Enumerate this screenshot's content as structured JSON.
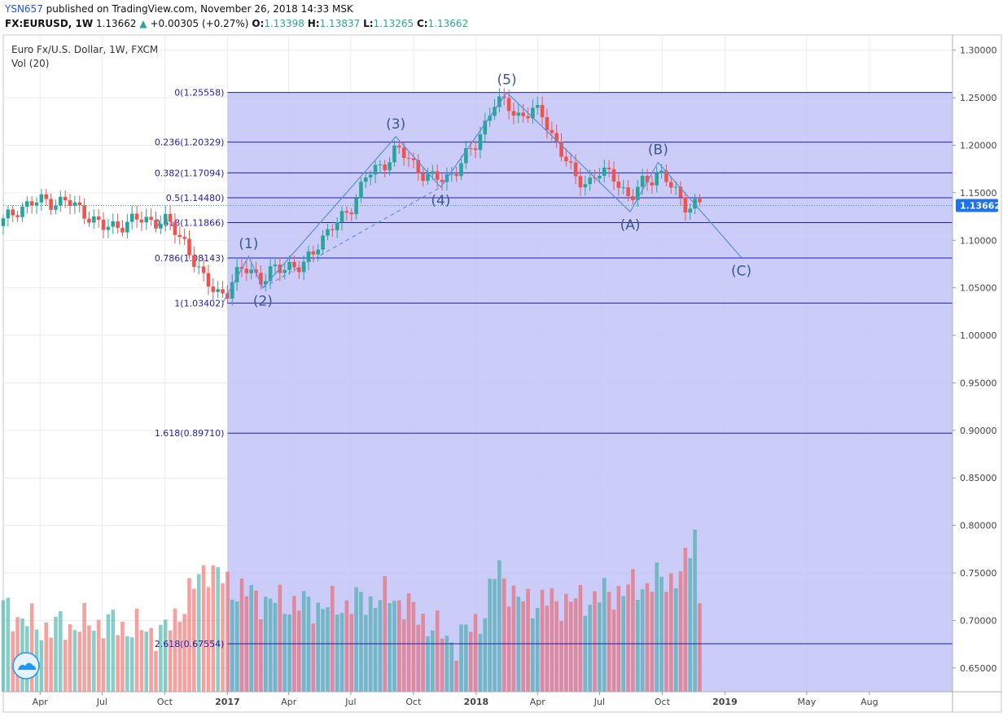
{
  "header": {
    "username": "YSN657",
    "published_text": "published on TradingView.com, November 26, 2018 14:33 MSK",
    "symbol": "FX:EURUSD, 1W",
    "last": "1.13662",
    "change": "+0.00305 (+0.27%)",
    "o_label": "O:",
    "o_value": "1.13398",
    "h_label": "H:",
    "h_value": "1.13837",
    "l_label": "L:",
    "l_value": "1.13265",
    "c_label": "C:",
    "c_value": "1.13662"
  },
  "chart": {
    "instrument_label": "Euro Fx/U.S. Dollar, 1W, FXCM",
    "volume_label": "Vol (20)",
    "last_price_badge": "1.13662",
    "icon": "tradingview-cloud-icon",
    "colors": {
      "up": "#26a69a",
      "down": "#ef5350",
      "fib": "#1e1eb4",
      "fill": "#c3c3f7",
      "wave": "#5a8fd6",
      "badge": "#1e73e6"
    }
  },
  "chart_data": {
    "type": "candlestick",
    "title": "Euro Fx/U.S. Dollar, 1W, FXCM",
    "y_axis": {
      "ticks": [
        "1.30000",
        "1.25000",
        "1.20000",
        "1.15000",
        "1.10000",
        "1.05000",
        "1.00000",
        "0.95000",
        "0.90000",
        "0.85000",
        "0.80000",
        "0.75000",
        "0.70000",
        "0.65000"
      ],
      "range": [
        0.625,
        1.316
      ],
      "position": "right"
    },
    "x_axis": {
      "ticks": [
        {
          "label": "Apr",
          "date": "2016-04-01",
          "bold": false
        },
        {
          "label": "Jul",
          "date": "2016-07-01",
          "bold": false
        },
        {
          "label": "Oct",
          "date": "2016-10-01",
          "bold": false
        },
        {
          "label": "2017",
          "date": "2017-01-01",
          "bold": true
        },
        {
          "label": "Apr",
          "date": "2017-04-01",
          "bold": false
        },
        {
          "label": "Jul",
          "date": "2017-07-01",
          "bold": false
        },
        {
          "label": "Oct",
          "date": "2017-10-01",
          "bold": false
        },
        {
          "label": "2018",
          "date": "2018-01-01",
          "bold": true
        },
        {
          "label": "Apr",
          "date": "2018-04-01",
          "bold": false
        },
        {
          "label": "Jul",
          "date": "2018-07-01",
          "bold": false
        },
        {
          "label": "Oct",
          "date": "2018-10-01",
          "bold": false
        },
        {
          "label": "2019",
          "date": "2019-01-01",
          "bold": true
        },
        {
          "label": "May",
          "date": "2019-05-01",
          "bold": false
        },
        {
          "label": "Aug",
          "date": "2019-08-01",
          "bold": false
        }
      ],
      "range": [
        "2016-02-07",
        "2019-12-01"
      ]
    },
    "price_path": [
      [
        "2016-02-01",
        1.115
      ],
      [
        "2016-03-01",
        1.135
      ],
      [
        "2016-04-10",
        1.142
      ],
      [
        "2016-05-10",
        1.14
      ],
      [
        "2016-06-10",
        1.128
      ],
      [
        "2016-07-01",
        1.112
      ],
      [
        "2016-08-01",
        1.118
      ],
      [
        "2016-09-01",
        1.122
      ],
      [
        "2016-10-01",
        1.12
      ],
      [
        "2016-11-01",
        1.098
      ],
      [
        "2016-11-25",
        1.058
      ],
      [
        "2016-12-20",
        1.046
      ],
      [
        "2017-01-01",
        1.045
      ],
      [
        "2017-01-20",
        1.068
      ],
      [
        "2017-02-01",
        1.074
      ],
      [
        "2017-02-22",
        1.055
      ],
      [
        "2017-03-15",
        1.072
      ],
      [
        "2017-04-01",
        1.075
      ],
      [
        "2017-04-20",
        1.068
      ],
      [
        "2017-05-15",
        1.1
      ],
      [
        "2017-06-15",
        1.12
      ],
      [
        "2017-07-01",
        1.136
      ],
      [
        "2017-07-25",
        1.168
      ],
      [
        "2017-08-15",
        1.178
      ],
      [
        "2017-09-05",
        1.196
      ],
      [
        "2017-10-01",
        1.18
      ],
      [
        "2017-10-25",
        1.165
      ],
      [
        "2017-11-15",
        1.163
      ],
      [
        "2017-12-05",
        1.178
      ],
      [
        "2018-01-01",
        1.2
      ],
      [
        "2018-01-25",
        1.245
      ],
      [
        "2018-02-15",
        1.242
      ],
      [
        "2018-03-01",
        1.232
      ],
      [
        "2018-03-25",
        1.235
      ],
      [
        "2018-04-10",
        1.23
      ],
      [
        "2018-05-01",
        1.2
      ],
      [
        "2018-05-25",
        1.165
      ],
      [
        "2018-06-15",
        1.162
      ],
      [
        "2018-07-01",
        1.17
      ],
      [
        "2018-07-25",
        1.168
      ],
      [
        "2018-08-15",
        1.14
      ],
      [
        "2018-09-01",
        1.16
      ],
      [
        "2018-09-25",
        1.172
      ],
      [
        "2018-10-15",
        1.155
      ],
      [
        "2018-11-05",
        1.138
      ],
      [
        "2018-11-26",
        1.13662
      ]
    ],
    "volume_range": [
      0.645,
      0.8
    ],
    "volume_path": [
      [
        "2016-02-01",
        0.725
      ],
      [
        "2016-04-01",
        0.705
      ],
      [
        "2016-07-01",
        0.71
      ],
      [
        "2016-10-01",
        0.7
      ],
      [
        "2016-11-15",
        0.745
      ],
      [
        "2016-12-01",
        0.765
      ],
      [
        "2017-01-01",
        0.745
      ],
      [
        "2017-03-01",
        0.73
      ],
      [
        "2017-06-01",
        0.725
      ],
      [
        "2017-09-01",
        0.735
      ],
      [
        "2017-12-01",
        0.69
      ],
      [
        "2018-01-15",
        0.72
      ],
      [
        "2018-02-01",
        0.765
      ],
      [
        "2018-03-01",
        0.73
      ],
      [
        "2018-06-01",
        0.73
      ],
      [
        "2018-09-01",
        0.745
      ],
      [
        "2018-11-01",
        0.755
      ],
      [
        "2018-11-19",
        0.8
      ],
      [
        "2018-11-26",
        0.72
      ]
    ],
    "fib_levels": [
      {
        "label": "0(1.25558)",
        "value": 1.25558
      },
      {
        "label": "0.236(1.20329)",
        "value": 1.20329
      },
      {
        "label": "0.382(1.17094)",
        "value": 1.17094
      },
      {
        "label": "0.5(1.14480)",
        "value": 1.1448
      },
      {
        "label": "0.618(1.11866)",
        "value": 1.11866
      },
      {
        "label": "0.786(1.08143)",
        "value": 1.08143
      },
      {
        "label": "1(1.03402)",
        "value": 1.03402
      },
      {
        "label": "1.618(0.89710)",
        "value": 0.8971
      },
      {
        "label": "2.618(0.67554)",
        "value": 0.67554
      }
    ],
    "fib_range": {
      "start": "2017-01-01",
      "end": "2019-12-01"
    },
    "elliott_waves": [
      {
        "label": "(1)",
        "date": "2017-02-01",
        "price": 1.083,
        "pos": "above"
      },
      {
        "label": "(2)",
        "date": "2017-02-22",
        "price": 1.05,
        "pos": "below"
      },
      {
        "label": "(3)",
        "date": "2017-09-05",
        "price": 1.209,
        "pos": "above"
      },
      {
        "label": "(4)",
        "date": "2017-11-10",
        "price": 1.156,
        "pos": "below"
      },
      {
        "label": "(5)",
        "date": "2018-02-15",
        "price": 1.2555,
        "pos": "above"
      },
      {
        "label": "(A)",
        "date": "2018-08-15",
        "price": 1.13,
        "pos": "below"
      },
      {
        "label": "(B)",
        "date": "2018-09-25",
        "price": 1.182,
        "pos": "above"
      },
      {
        "label": "(C)",
        "date": "2019-01-25",
        "price": 1.082,
        "pos": "below"
      }
    ],
    "wave_path": [
      [
        "2016-12-25",
        1.034
      ],
      [
        "2017-02-01",
        1.083
      ],
      [
        "2017-02-22",
        1.05
      ],
      [
        "2017-09-05",
        1.209
      ],
      [
        "2017-11-10",
        1.156
      ],
      [
        "2018-02-15",
        1.2555
      ],
      [
        "2018-08-15",
        1.13
      ],
      [
        "2018-09-25",
        1.182
      ],
      [
        "2019-01-25",
        1.082
      ]
    ],
    "dashed_lines": [
      [
        [
          "2017-02-22",
          1.05
        ],
        [
          "2017-11-10",
          1.156
        ]
      ],
      [
        [
          "2017-11-10",
          1.156
        ],
        [
          "2018-02-15",
          1.2555
        ]
      ]
    ]
  }
}
